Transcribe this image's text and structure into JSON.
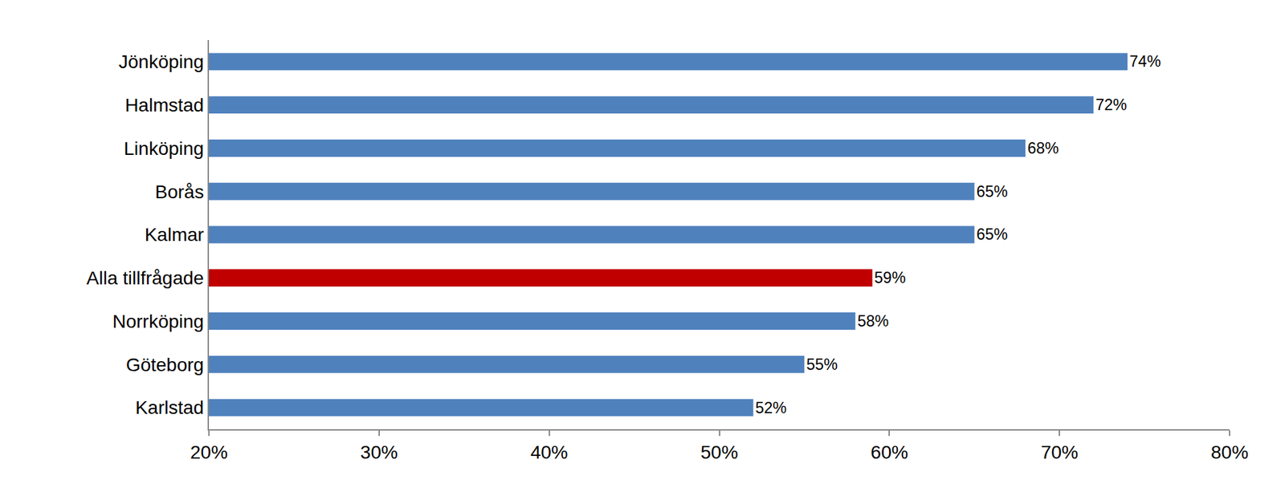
{
  "chart_data": {
    "type": "bar",
    "orientation": "horizontal",
    "categories": [
      "Jönköping",
      "Halmstad",
      "Linköping",
      "Borås",
      "Kalmar",
      "Alla tillfrågade",
      "Norrköping",
      "Göteborg",
      "Karlstad"
    ],
    "values": [
      74,
      72,
      68,
      65,
      65,
      59,
      58,
      55,
      52
    ],
    "value_labels": [
      "74%",
      "72%",
      "68%",
      "65%",
      "65%",
      "59%",
      "58%",
      "55%",
      "52%"
    ],
    "colors": [
      "#4f81bd",
      "#4f81bd",
      "#4f81bd",
      "#4f81bd",
      "#4f81bd",
      "#c00000",
      "#4f81bd",
      "#4f81bd",
      "#4f81bd"
    ],
    "xlim": [
      20,
      80
    ],
    "xticks": [
      {
        "value": 20,
        "label": "20%"
      },
      {
        "value": 30,
        "label": "30%"
      },
      {
        "value": 40,
        "label": "40%"
      },
      {
        "value": 50,
        "label": "50%"
      },
      {
        "value": 60,
        "label": "60%"
      },
      {
        "value": 70,
        "label": "70%"
      },
      {
        "value": 80,
        "label": "80%"
      }
    ],
    "grid": false,
    "data_labels": true
  }
}
